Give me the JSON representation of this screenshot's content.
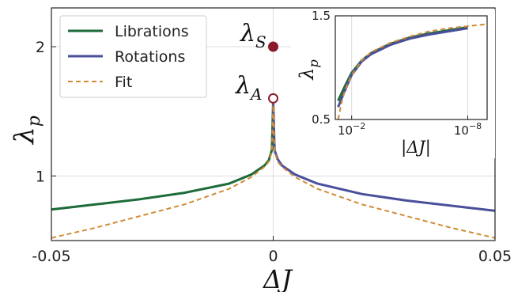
{
  "colors": {
    "librations": "#1d6b3a",
    "rotations": "#4a4f9c",
    "fit": "#d08b36",
    "lambda_s_marker": "#8b1a2b",
    "grid": "#dcdcdc"
  },
  "annotations": {
    "lambda_s": {
      "symbol": "λ",
      "sub": "S"
    },
    "lambda_a": {
      "symbol": "λ",
      "sub": "A"
    }
  },
  "chart_data": [
    {
      "type": "line",
      "title": "",
      "xlabel": {
        "symbol": "ΔJ"
      },
      "ylabel": {
        "symbol": "λ",
        "sub": "p"
      },
      "xlim": [
        -0.05,
        0.05
      ],
      "ylim": [
        0.5,
        2.3
      ],
      "xticks": [
        -0.05,
        0,
        0.05
      ],
      "xtick_labels": [
        "-0.05",
        "0",
        "0.05"
      ],
      "yticks": [
        1,
        2
      ],
      "ytick_labels": [
        "1",
        "2"
      ],
      "grid": true,
      "legend": "top-left",
      "series": [
        {
          "name": "Librations",
          "style": "solid",
          "x": [
            -0.05,
            -0.04,
            -0.03,
            -0.02,
            -0.01,
            -0.005,
            -0.002,
            -0.001,
            -0.0003,
            0
          ],
          "y": [
            0.74,
            0.78,
            0.82,
            0.87,
            0.94,
            1.01,
            1.08,
            1.12,
            1.2,
            1.58
          ]
        },
        {
          "name": "Rotations",
          "style": "solid",
          "x": [
            0,
            0.0003,
            0.001,
            0.002,
            0.005,
            0.01,
            0.02,
            0.03,
            0.04,
            0.05
          ],
          "y": [
            1.58,
            1.2,
            1.13,
            1.08,
            1.01,
            0.94,
            0.86,
            0.81,
            0.77,
            0.73
          ]
        },
        {
          "name": "Fit",
          "style": "dashed",
          "x": [
            -0.05,
            -0.04,
            -0.03,
            -0.02,
            -0.01,
            -0.005,
            -0.002,
            -0.001,
            -0.0003,
            0,
            0.0003,
            0.001,
            0.002,
            0.005,
            0.01,
            0.02,
            0.03,
            0.04,
            0.05
          ],
          "y": [
            0.52,
            0.6,
            0.69,
            0.78,
            0.9,
            0.99,
            1.07,
            1.11,
            1.19,
            1.58,
            1.19,
            1.11,
            1.07,
            0.99,
            0.9,
            0.78,
            0.69,
            0.6,
            0.52
          ]
        }
      ],
      "points": [
        {
          "label": "λS",
          "x": 0,
          "y": 2.0,
          "filled": true
        },
        {
          "label": "λA",
          "x": 0,
          "y": 1.6,
          "filled": false
        }
      ]
    },
    {
      "type": "line",
      "title": "",
      "xlabel": {
        "symbol": "|ΔJ|"
      },
      "ylabel": {
        "symbol": "λ",
        "sub": "p"
      },
      "xscale": "log",
      "x_reversed": true,
      "xlim": [
        0.07,
        1e-09
      ],
      "ylim": [
        0.5,
        1.5
      ],
      "xticks": [
        0.01,
        1e-08
      ],
      "xtick_labels": [
        {
          "base": "10",
          "exp": "−2"
        },
        {
          "base": "10",
          "exp": "−8"
        }
      ],
      "yticks": [
        0.5,
        1.5
      ],
      "ytick_labels": [
        "0.5",
        "1.5"
      ],
      "grid": true,
      "series": [
        {
          "name": "Librations",
          "style": "solid",
          "x": [
            0.05,
            0.02,
            0.01,
            0.003,
            0.001,
            0.0001,
            1e-05,
            1e-06,
            1e-07,
            1e-08
          ],
          "y": [
            0.68,
            0.84,
            0.95,
            1.07,
            1.14,
            1.23,
            1.29,
            1.33,
            1.36,
            1.39
          ]
        },
        {
          "name": "Rotations",
          "style": "solid",
          "x": [
            0.05,
            0.02,
            0.01,
            0.003,
            0.001,
            0.0001,
            1e-05,
            1e-06,
            1e-07,
            1e-08
          ],
          "y": [
            0.62,
            0.8,
            0.93,
            1.06,
            1.13,
            1.22,
            1.28,
            1.32,
            1.35,
            1.38
          ]
        },
        {
          "name": "Fit",
          "style": "dashed",
          "x": [
            0.05,
            0.03,
            0.02,
            0.01,
            0.003,
            0.001,
            0.0001,
            1e-05,
            1e-06,
            1e-07,
            1e-08,
            1e-09
          ],
          "y": [
            0.5,
            0.7,
            0.8,
            0.93,
            1.07,
            1.15,
            1.24,
            1.3,
            1.35,
            1.38,
            1.4,
            1.42
          ]
        }
      ]
    }
  ]
}
